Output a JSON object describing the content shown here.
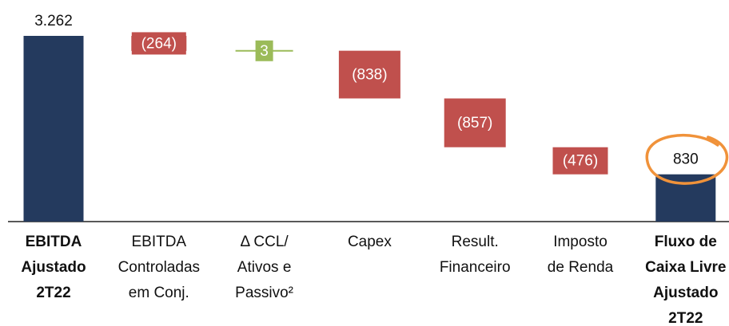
{
  "chart_data": {
    "type": "waterfall",
    "categories": [
      [
        "EBITDA",
        "Ajustado",
        "2T22"
      ],
      [
        "EBITDA",
        "Controladas",
        "em Conj."
      ],
      [
        "Δ CCL/",
        "Ativos e",
        "Passivo²"
      ],
      [
        "Capex"
      ],
      [
        "Result.",
        "Financeiro"
      ],
      [
        "Imposto",
        "de Renda"
      ],
      [
        "Fluxo de",
        "Caixa Livre",
        "Ajustado",
        "2T22"
      ]
    ],
    "values": [
      3262,
      -264,
      3,
      -838,
      -857,
      -476,
      830
    ],
    "value_labels": [
      "3.262",
      "(264)",
      "3",
      "(838)",
      "(857)",
      "(476)",
      "830"
    ],
    "kinds": [
      "total",
      "delta",
      "delta",
      "delta",
      "delta",
      "delta",
      "total"
    ],
    "colors": {
      "total": "#243a5e",
      "negative": "#c0504d",
      "positive": "#9bbb59"
    }
  }
}
